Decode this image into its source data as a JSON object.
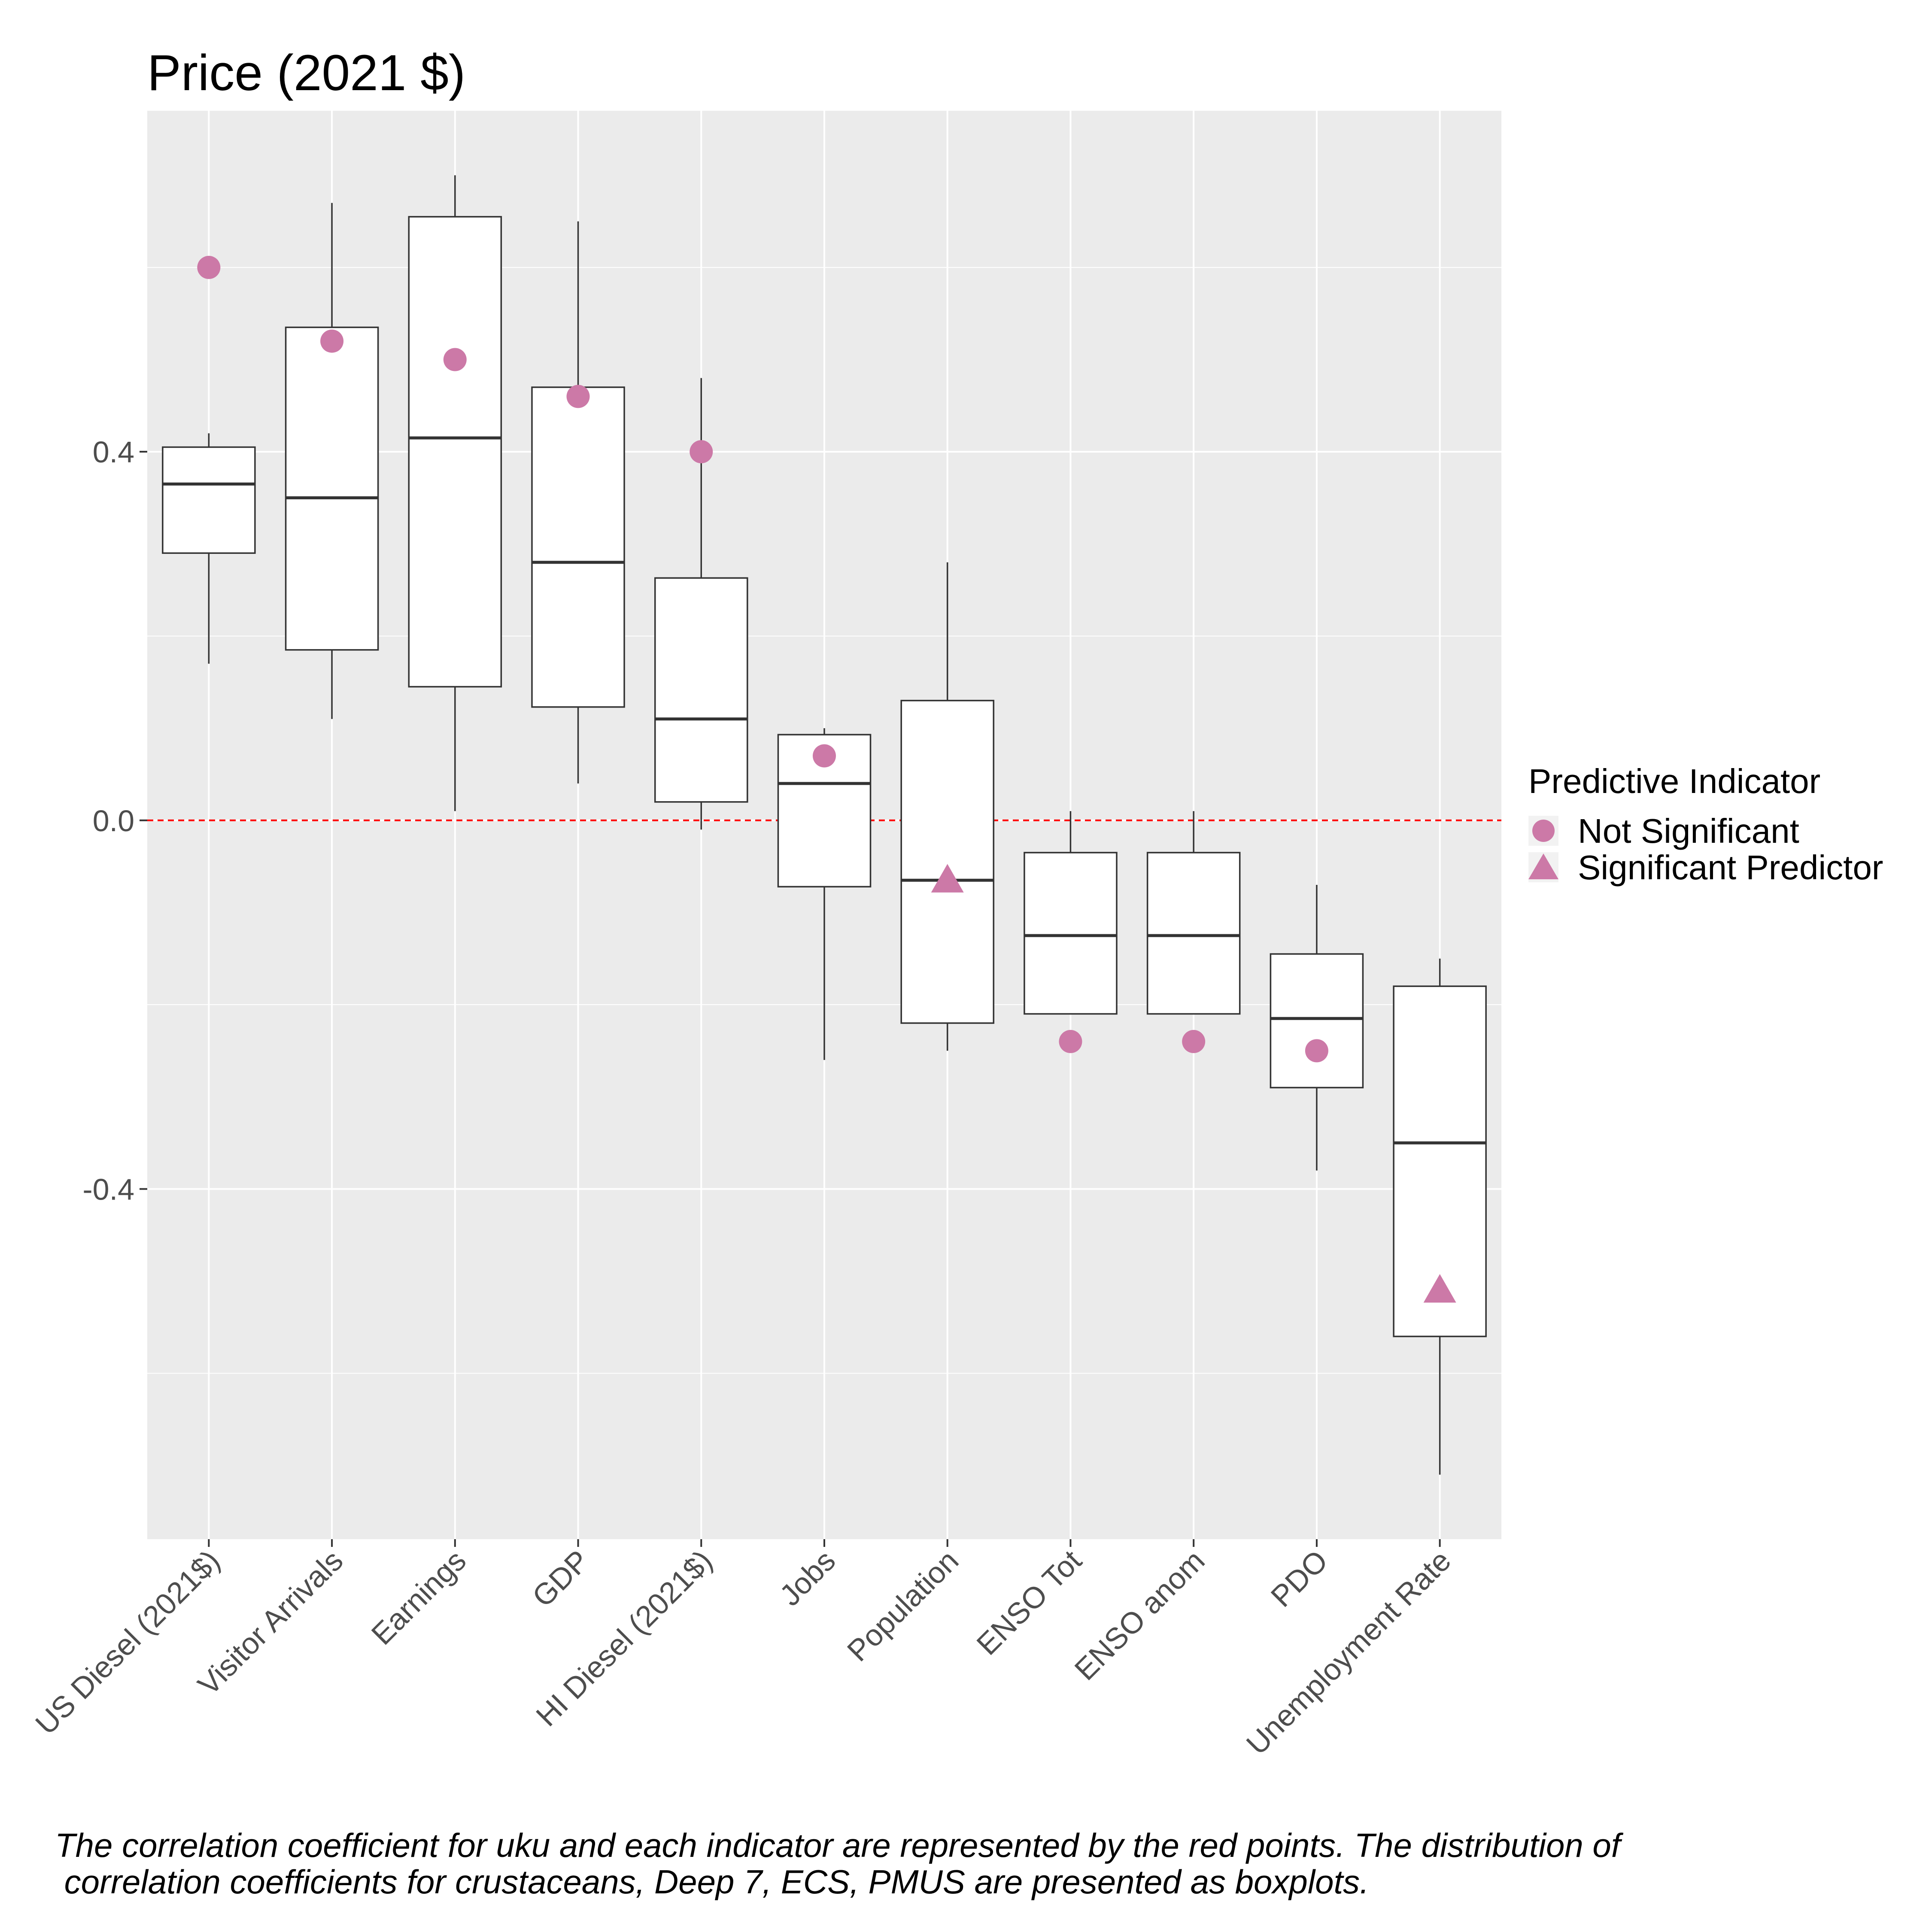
{
  "chart_data": {
    "type": "box",
    "title": "Price (2021 $)",
    "xlabel": "",
    "ylabel": "",
    "ylim": [
      -0.78,
      0.77
    ],
    "y_ticks": [
      -0.4,
      0.0,
      0.4
    ],
    "y_tick_labels": [
      "-0.4",
      "0.0",
      "0.4"
    ],
    "reference_line": {
      "y": 0.0,
      "color": "#ff0000",
      "style": "dashed"
    },
    "grid": true,
    "categories": [
      "US Diesel (2021$)",
      "Visitor Arrivals",
      "Earnings",
      "GDP",
      "HI Diesel (2021$)",
      "Jobs",
      "Population",
      "ENSO Tot",
      "ENSO anom",
      "PDO",
      "Unemployment Rate"
    ],
    "boxes": [
      {
        "whisker_low": 0.17,
        "q1": 0.29,
        "median": 0.365,
        "q3": 0.405,
        "whisker_high": 0.42
      },
      {
        "whisker_low": 0.11,
        "q1": 0.185,
        "median": 0.35,
        "q3": 0.535,
        "whisker_high": 0.67
      },
      {
        "whisker_low": 0.01,
        "q1": 0.145,
        "median": 0.415,
        "q3": 0.655,
        "whisker_high": 0.7
      },
      {
        "whisker_low": 0.04,
        "q1": 0.123,
        "median": 0.28,
        "q3": 0.47,
        "whisker_high": 0.65
      },
      {
        "whisker_low": -0.01,
        "q1": 0.02,
        "median": 0.11,
        "q3": 0.263,
        "whisker_high": 0.48
      },
      {
        "whisker_low": -0.26,
        "q1": -0.072,
        "median": 0.04,
        "q3": 0.093,
        "whisker_high": 0.1
      },
      {
        "whisker_low": -0.25,
        "q1": -0.22,
        "median": -0.065,
        "q3": 0.13,
        "whisker_high": 0.28
      },
      {
        "whisker_low": -0.21,
        "q1": -0.21,
        "median": -0.125,
        "q3": -0.035,
        "whisker_high": 0.01
      },
      {
        "whisker_low": -0.21,
        "q1": -0.21,
        "median": -0.125,
        "q3": -0.035,
        "whisker_high": 0.01
      },
      {
        "whisker_low": -0.38,
        "q1": -0.29,
        "median": -0.215,
        "q3": -0.145,
        "whisker_high": -0.07
      },
      {
        "whisker_low": -0.71,
        "q1": -0.56,
        "median": -0.35,
        "q3": -0.18,
        "whisker_high": -0.15
      }
    ],
    "points": [
      {
        "y": 0.6,
        "shape": "circle"
      },
      {
        "y": 0.52,
        "shape": "circle"
      },
      {
        "y": 0.5,
        "shape": "circle"
      },
      {
        "y": 0.46,
        "shape": "circle"
      },
      {
        "y": 0.4,
        "shape": "circle"
      },
      {
        "y": 0.07,
        "shape": "circle"
      },
      {
        "y": -0.065,
        "shape": "triangle"
      },
      {
        "y": -0.24,
        "shape": "circle"
      },
      {
        "y": -0.24,
        "shape": "circle"
      },
      {
        "y": -0.25,
        "shape": "circle"
      },
      {
        "y": -0.51,
        "shape": "triangle"
      }
    ],
    "point_color": "#cc79a7",
    "legend": {
      "title": "Predictive Indicator",
      "position": "right",
      "entries": [
        {
          "label": "Not Significant",
          "shape": "circle"
        },
        {
          "label": "Significant Predictor",
          "shape": "triangle"
        }
      ]
    }
  },
  "caption": {
    "line1": "The correlation coefficient for uku and each indicator are represented by the red points. The distribution of",
    "line2": " correlation coefficients for crustaceans, Deep 7, ECS, PMUS are presented as boxplots."
  }
}
